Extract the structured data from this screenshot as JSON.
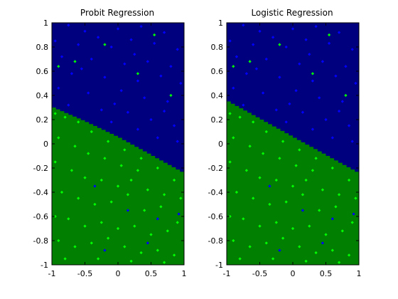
{
  "chart_data": [
    {
      "type": "scatter",
      "title": "Probit Regression",
      "xlabel": "",
      "ylabel": "",
      "xlim": [
        -1,
        1
      ],
      "ylim": [
        -1,
        1
      ],
      "xticks": [
        -1,
        -0.5,
        0,
        0.5,
        1
      ],
      "xtick_labels": [
        "-1",
        "-0.5",
        "0",
        "0.5",
        "1"
      ],
      "yticks": [
        -1,
        -0.8,
        -0.6,
        -0.4,
        -0.2,
        0,
        0.2,
        0.4,
        0.6,
        0.8,
        1
      ],
      "ytick_labels": [
        "-1",
        "-0.8",
        "-0.6",
        "-0.4",
        "-0.2",
        "0",
        "0.2",
        "0.4",
        "0.6",
        "0.8",
        "1"
      ],
      "grid": false,
      "legend": "none",
      "decision_boundary": {
        "x": [
          -1,
          -0.5,
          0,
          0.5,
          1
        ],
        "y": [
          0.3,
          0.18,
          0.05,
          -0.1,
          -0.25
        ]
      },
      "colors": {
        "upper_region": "#00007F",
        "lower_region": "#007F00",
        "upper_points": "#0000FF",
        "lower_points": "#00FF00"
      },
      "series": [
        {
          "values": [
            [
              -0.75,
              0.98
            ],
            [
              -0.5,
              0.93
            ],
            [
              -0.3,
              0.88
            ],
            [
              0.0,
              0.95
            ],
            [
              0.35,
              0.97
            ],
            [
              0.7,
              0.92
            ],
            [
              -0.95,
              0.85
            ],
            [
              -0.6,
              0.82
            ],
            [
              -0.1,
              0.8
            ],
            [
              0.2,
              0.86
            ],
            [
              0.55,
              0.83
            ],
            [
              0.9,
              0.78
            ],
            [
              -0.85,
              0.72
            ],
            [
              -0.4,
              0.7
            ],
            [
              0.1,
              0.66
            ],
            [
              0.45,
              0.68
            ],
            [
              0.8,
              0.64
            ],
            [
              -0.7,
              0.58
            ],
            [
              -0.2,
              0.55
            ],
            [
              0.3,
              0.52
            ],
            [
              0.65,
              0.56
            ],
            [
              0.95,
              0.5
            ],
            [
              -0.9,
              0.46
            ],
            [
              -0.45,
              0.42
            ],
            [
              0.05,
              0.44
            ],
            [
              0.4,
              0.38
            ],
            [
              0.75,
              0.35
            ],
            [
              -0.75,
              0.32
            ],
            [
              -0.25,
              0.28
            ],
            [
              0.15,
              0.26
            ],
            [
              0.5,
              0.2
            ],
            [
              0.85,
              0.15
            ],
            [
              -0.1,
              0.18
            ],
            [
              0.3,
              0.12
            ],
            [
              0.6,
              0.05
            ],
            [
              0.9,
              0.02
            ],
            [
              -0.55,
              0.62
            ],
            [
              0.25,
              0.74
            ],
            [
              -0.05,
              0.33
            ],
            [
              0.7,
              0.27
            ],
            [
              -0.35,
              -0.35
            ],
            [
              0.15,
              -0.55
            ],
            [
              0.6,
              -0.62
            ],
            [
              0.45,
              -0.82
            ],
            [
              0.92,
              -0.58
            ],
            [
              -0.2,
              -0.88
            ]
          ]
        },
        {
          "values": [
            [
              -0.95,
              0.25
            ],
            [
              -0.8,
              0.22
            ],
            [
              -0.6,
              0.18
            ],
            [
              -0.4,
              0.1
            ],
            [
              -0.15,
              0.02
            ],
            [
              0.1,
              -0.05
            ],
            [
              0.35,
              -0.12
            ],
            [
              -0.9,
              0.05
            ],
            [
              -0.65,
              -0.02
            ],
            [
              -0.45,
              -0.08
            ],
            [
              -0.2,
              -0.12
            ],
            [
              0.05,
              -0.18
            ],
            [
              0.3,
              -0.22
            ],
            [
              0.6,
              -0.2
            ],
            [
              0.85,
              -0.3
            ],
            [
              -0.95,
              -0.15
            ],
            [
              -0.7,
              -0.22
            ],
            [
              -0.5,
              -0.28
            ],
            [
              -0.25,
              -0.3
            ],
            [
              0.0,
              -0.35
            ],
            [
              0.2,
              -0.3
            ],
            [
              0.45,
              -0.38
            ],
            [
              0.7,
              -0.42
            ],
            [
              0.95,
              -0.45
            ],
            [
              -0.85,
              -0.4
            ],
            [
              -0.6,
              -0.45
            ],
            [
              -0.35,
              -0.5
            ],
            [
              -0.1,
              -0.48
            ],
            [
              0.15,
              -0.42
            ],
            [
              0.4,
              -0.55
            ],
            [
              0.65,
              -0.52
            ],
            [
              0.9,
              -0.65
            ],
            [
              -0.95,
              -0.6
            ],
            [
              -0.75,
              -0.62
            ],
            [
              -0.5,
              -0.68
            ],
            [
              -0.25,
              -0.65
            ],
            [
              0.0,
              -0.7
            ],
            [
              0.25,
              -0.68
            ],
            [
              0.5,
              -0.75
            ],
            [
              0.75,
              -0.72
            ],
            [
              -0.9,
              -0.8
            ],
            [
              -0.65,
              -0.85
            ],
            [
              -0.4,
              -0.82
            ],
            [
              -0.15,
              -0.78
            ],
            [
              0.1,
              -0.85
            ],
            [
              0.35,
              -0.9
            ],
            [
              0.6,
              -0.88
            ],
            [
              0.85,
              -0.92
            ],
            [
              -0.8,
              -0.95
            ],
            [
              -0.3,
              -0.95
            ],
            [
              0.2,
              -0.97
            ],
            [
              0.7,
              -0.98
            ],
            [
              -0.65,
              0.68
            ],
            [
              -0.2,
              0.82
            ],
            [
              0.3,
              0.58
            ],
            [
              0.8,
              0.4
            ],
            [
              -0.9,
              0.64
            ],
            [
              0.55,
              0.9
            ]
          ]
        }
      ]
    },
    {
      "type": "scatter",
      "title": "Logistic Regression",
      "xlabel": "",
      "ylabel": "",
      "xlim": [
        -1,
        1
      ],
      "ylim": [
        -1,
        1
      ],
      "xticks": [
        -1,
        -0.5,
        0,
        0.5,
        1
      ],
      "xtick_labels": [
        "-1",
        "-0.5",
        "0",
        "0.5",
        "1"
      ],
      "yticks": [
        -1,
        -0.8,
        -0.6,
        -0.4,
        -0.2,
        0,
        0.2,
        0.4,
        0.6,
        0.8,
        1
      ],
      "ytick_labels": [
        "-1",
        "-0.8",
        "-0.6",
        "-0.4",
        "-0.2",
        "0",
        "0.2",
        "0.4",
        "0.6",
        "0.8",
        "1"
      ],
      "grid": false,
      "legend": "none",
      "decision_boundary": {
        "x": [
          -1,
          -0.5,
          0,
          0.5,
          1
        ],
        "y": [
          0.35,
          0.2,
          0.05,
          -0.1,
          -0.25
        ]
      },
      "colors": {
        "upper_region": "#00007F",
        "lower_region": "#007F00",
        "upper_points": "#0000FF",
        "lower_points": "#00FF00"
      },
      "series": [
        {
          "values": [
            [
              -0.75,
              0.98
            ],
            [
              -0.5,
              0.93
            ],
            [
              -0.3,
              0.88
            ],
            [
              0.0,
              0.95
            ],
            [
              0.35,
              0.97
            ],
            [
              0.7,
              0.92
            ],
            [
              -0.95,
              0.85
            ],
            [
              -0.6,
              0.82
            ],
            [
              -0.1,
              0.8
            ],
            [
              0.2,
              0.86
            ],
            [
              0.55,
              0.83
            ],
            [
              0.9,
              0.78
            ],
            [
              -0.85,
              0.72
            ],
            [
              -0.4,
              0.7
            ],
            [
              0.1,
              0.66
            ],
            [
              0.45,
              0.68
            ],
            [
              0.8,
              0.64
            ],
            [
              -0.7,
              0.58
            ],
            [
              -0.2,
              0.55
            ],
            [
              0.3,
              0.52
            ],
            [
              0.65,
              0.56
            ],
            [
              0.95,
              0.5
            ],
            [
              -0.9,
              0.46
            ],
            [
              -0.45,
              0.42
            ],
            [
              0.05,
              0.44
            ],
            [
              0.4,
              0.38
            ],
            [
              0.75,
              0.35
            ],
            [
              -0.75,
              0.32
            ],
            [
              -0.25,
              0.28
            ],
            [
              0.15,
              0.26
            ],
            [
              0.5,
              0.2
            ],
            [
              0.85,
              0.15
            ],
            [
              -0.1,
              0.18
            ],
            [
              0.3,
              0.12
            ],
            [
              0.6,
              0.05
            ],
            [
              0.9,
              0.02
            ],
            [
              -0.55,
              0.62
            ],
            [
              0.25,
              0.74
            ],
            [
              -0.05,
              0.33
            ],
            [
              0.7,
              0.27
            ],
            [
              -0.35,
              -0.35
            ],
            [
              0.15,
              -0.55
            ],
            [
              0.6,
              -0.62
            ],
            [
              0.45,
              -0.82
            ],
            [
              0.92,
              -0.58
            ],
            [
              -0.2,
              -0.88
            ]
          ]
        },
        {
          "values": [
            [
              -0.95,
              0.25
            ],
            [
              -0.8,
              0.22
            ],
            [
              -0.6,
              0.18
            ],
            [
              -0.4,
              0.1
            ],
            [
              -0.15,
              0.02
            ],
            [
              0.1,
              -0.05
            ],
            [
              0.35,
              -0.12
            ],
            [
              -0.9,
              0.05
            ],
            [
              -0.65,
              -0.02
            ],
            [
              -0.45,
              -0.08
            ],
            [
              -0.2,
              -0.12
            ],
            [
              0.05,
              -0.18
            ],
            [
              0.3,
              -0.22
            ],
            [
              0.6,
              -0.2
            ],
            [
              0.85,
              -0.3
            ],
            [
              -0.95,
              -0.15
            ],
            [
              -0.7,
              -0.22
            ],
            [
              -0.5,
              -0.28
            ],
            [
              -0.25,
              -0.3
            ],
            [
              0.0,
              -0.35
            ],
            [
              0.2,
              -0.3
            ],
            [
              0.45,
              -0.38
            ],
            [
              0.7,
              -0.42
            ],
            [
              0.95,
              -0.45
            ],
            [
              -0.85,
              -0.4
            ],
            [
              -0.6,
              -0.45
            ],
            [
              -0.35,
              -0.5
            ],
            [
              -0.1,
              -0.48
            ],
            [
              0.15,
              -0.42
            ],
            [
              0.4,
              -0.55
            ],
            [
              0.65,
              -0.52
            ],
            [
              0.9,
              -0.65
            ],
            [
              -0.95,
              -0.6
            ],
            [
              -0.75,
              -0.62
            ],
            [
              -0.5,
              -0.68
            ],
            [
              -0.25,
              -0.65
            ],
            [
              0.0,
              -0.7
            ],
            [
              0.25,
              -0.68
            ],
            [
              0.5,
              -0.75
            ],
            [
              0.75,
              -0.72
            ],
            [
              -0.9,
              -0.8
            ],
            [
              -0.65,
              -0.85
            ],
            [
              -0.4,
              -0.82
            ],
            [
              -0.15,
              -0.78
            ],
            [
              0.1,
              -0.85
            ],
            [
              0.35,
              -0.9
            ],
            [
              0.6,
              -0.88
            ],
            [
              0.85,
              -0.92
            ],
            [
              -0.8,
              -0.95
            ],
            [
              -0.3,
              -0.95
            ],
            [
              0.2,
              -0.97
            ],
            [
              0.7,
              -0.98
            ],
            [
              -0.65,
              0.68
            ],
            [
              -0.2,
              0.82
            ],
            [
              0.3,
              0.58
            ],
            [
              0.8,
              0.4
            ],
            [
              -0.9,
              0.64
            ],
            [
              0.55,
              0.9
            ]
          ]
        }
      ]
    }
  ]
}
